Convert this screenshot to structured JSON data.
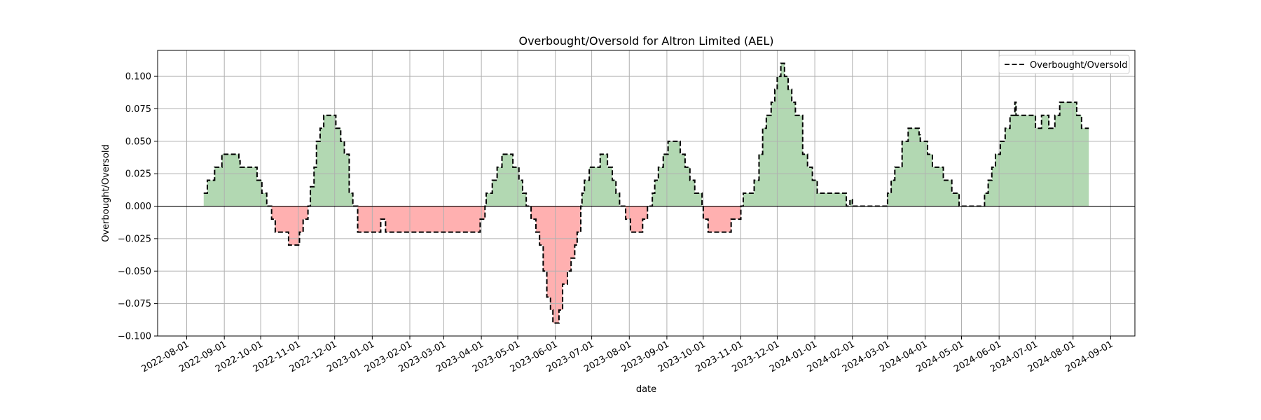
{
  "chart_data": {
    "type": "area",
    "title": "Overbought/Oversold for Altron Limited (AEL)",
    "xlabel": "date",
    "ylabel": "Overbought/Oversold",
    "xlim": [
      "2022-07-08",
      "2024-09-21"
    ],
    "ylim": [
      -0.1,
      0.12
    ],
    "x_ticks": [
      "2022-08-01",
      "2022-09-01",
      "2022-10-01",
      "2022-11-01",
      "2022-12-01",
      "2023-01-01",
      "2023-02-01",
      "2023-03-01",
      "2023-04-01",
      "2023-05-01",
      "2023-06-01",
      "2023-07-01",
      "2023-08-01",
      "2023-09-01",
      "2023-10-01",
      "2023-11-01",
      "2023-12-01",
      "2024-01-01",
      "2024-02-01",
      "2024-03-01",
      "2024-04-01",
      "2024-05-01",
      "2024-06-01",
      "2024-07-01",
      "2024-08-01",
      "2024-09-01"
    ],
    "y_ticks": [
      -0.1,
      -0.075,
      -0.05,
      -0.025,
      0.0,
      0.025,
      0.05,
      0.075,
      0.1
    ],
    "y_tick_labels": [
      "−0.100",
      "−0.075",
      "−0.050",
      "−0.025",
      "0.000",
      "0.025",
      "0.050",
      "0.075",
      "0.100"
    ],
    "grid": true,
    "legend": {
      "position": "top-right",
      "entries": [
        "Overbought/Oversold"
      ]
    },
    "fill_colors": {
      "positive": "#b2d8b2",
      "negative": "#ffb0b0"
    },
    "line_color": "#000000",
    "baseline": 0.0,
    "series": [
      {
        "name": "Overbought/Oversold",
        "style": "dashed-step",
        "points": [
          [
            "2022-08-15",
            0.01
          ],
          [
            "2022-08-18",
            0.02
          ],
          [
            "2022-08-24",
            0.03
          ],
          [
            "2022-08-30",
            0.04
          ],
          [
            "2022-09-10",
            0.04
          ],
          [
            "2022-09-13",
            0.035
          ],
          [
            "2022-09-14",
            0.03
          ],
          [
            "2022-09-25",
            0.03
          ],
          [
            "2022-09-28",
            0.02
          ],
          [
            "2022-10-02",
            0.01
          ],
          [
            "2022-10-06",
            0.0
          ],
          [
            "2022-10-10",
            -0.01
          ],
          [
            "2022-10-13",
            -0.02
          ],
          [
            "2022-10-20",
            -0.02
          ],
          [
            "2022-10-24",
            -0.03
          ],
          [
            "2022-11-02",
            -0.02
          ],
          [
            "2022-11-05",
            -0.01
          ],
          [
            "2022-11-09",
            0.0
          ],
          [
            "2022-11-11",
            0.015
          ],
          [
            "2022-11-14",
            0.03
          ],
          [
            "2022-11-16",
            0.05
          ],
          [
            "2022-11-19",
            0.06
          ],
          [
            "2022-11-22",
            0.07
          ],
          [
            "2022-12-02",
            0.06
          ],
          [
            "2022-12-06",
            0.05
          ],
          [
            "2022-12-09",
            0.04
          ],
          [
            "2022-12-13",
            0.01
          ],
          [
            "2022-12-16",
            0.0
          ],
          [
            "2022-12-20",
            -0.02
          ],
          [
            "2023-01-08",
            -0.01
          ],
          [
            "2023-01-12",
            -0.02
          ],
          [
            "2023-03-28",
            -0.02
          ],
          [
            "2023-03-31",
            -0.01
          ],
          [
            "2023-04-04",
            0.0
          ],
          [
            "2023-04-05",
            0.01
          ],
          [
            "2023-04-10",
            0.02
          ],
          [
            "2023-04-14",
            0.03
          ],
          [
            "2023-04-18",
            0.04
          ],
          [
            "2023-04-27",
            0.03
          ],
          [
            "2023-05-02",
            0.02
          ],
          [
            "2023-05-05",
            0.01
          ],
          [
            "2023-05-08",
            0.0
          ],
          [
            "2023-05-12",
            -0.01
          ],
          [
            "2023-05-16",
            -0.02
          ],
          [
            "2023-05-19",
            -0.03
          ],
          [
            "2023-05-22",
            -0.05
          ],
          [
            "2023-05-25",
            -0.07
          ],
          [
            "2023-05-28",
            -0.08
          ],
          [
            "2023-05-30",
            -0.09
          ],
          [
            "2023-06-04",
            -0.08
          ],
          [
            "2023-06-07",
            -0.06
          ],
          [
            "2023-06-11",
            -0.05
          ],
          [
            "2023-06-14",
            -0.04
          ],
          [
            "2023-06-17",
            -0.03
          ],
          [
            "2023-06-19",
            -0.02
          ],
          [
            "2023-06-22",
            0.0
          ],
          [
            "2023-06-23",
            0.01
          ],
          [
            "2023-06-25",
            0.02
          ],
          [
            "2023-06-29",
            0.03
          ],
          [
            "2023-07-08",
            0.04
          ],
          [
            "2023-07-14",
            0.03
          ],
          [
            "2023-07-18",
            0.02
          ],
          [
            "2023-07-21",
            0.01
          ],
          [
            "2023-07-24",
            0.0
          ],
          [
            "2023-07-29",
            -0.01
          ],
          [
            "2023-08-02",
            -0.02
          ],
          [
            "2023-08-12",
            -0.01
          ],
          [
            "2023-08-16",
            0.0
          ],
          [
            "2023-08-20",
            0.01
          ],
          [
            "2023-08-22",
            0.02
          ],
          [
            "2023-08-25",
            0.03
          ],
          [
            "2023-08-29",
            0.04
          ],
          [
            "2023-09-02",
            0.05
          ],
          [
            "2023-09-12",
            0.04
          ],
          [
            "2023-09-16",
            0.03
          ],
          [
            "2023-09-20",
            0.02
          ],
          [
            "2023-09-24",
            0.01
          ],
          [
            "2023-09-30",
            0.0
          ],
          [
            "2023-10-01",
            -0.01
          ],
          [
            "2023-10-05",
            -0.02
          ],
          [
            "2023-10-24",
            -0.01
          ],
          [
            "2023-11-01",
            0.0
          ],
          [
            "2023-11-03",
            0.01
          ],
          [
            "2023-11-12",
            0.02
          ],
          [
            "2023-11-16",
            0.04
          ],
          [
            "2023-11-19",
            0.06
          ],
          [
            "2023-11-22",
            0.07
          ],
          [
            "2023-11-26",
            0.08
          ],
          [
            "2023-11-29",
            0.09
          ],
          [
            "2023-12-01",
            0.1
          ],
          [
            "2023-12-04",
            0.11
          ],
          [
            "2023-12-07",
            0.1
          ],
          [
            "2023-12-10",
            0.09
          ],
          [
            "2023-12-13",
            0.08
          ],
          [
            "2023-12-16",
            0.07
          ],
          [
            "2023-12-22",
            0.04
          ],
          [
            "2023-12-26",
            0.03
          ],
          [
            "2023-12-30",
            0.02
          ],
          [
            "2024-01-03",
            0.01
          ],
          [
            "2024-01-27",
            0.0
          ],
          [
            "2024-01-30",
            0.005
          ],
          [
            "2024-02-01",
            0.0
          ],
          [
            "2024-03-01",
            0.01
          ],
          [
            "2024-03-04",
            0.02
          ],
          [
            "2024-03-07",
            0.03
          ],
          [
            "2024-03-13",
            0.05
          ],
          [
            "2024-03-18",
            0.06
          ],
          [
            "2024-03-27",
            0.055
          ],
          [
            "2024-03-28",
            0.05
          ],
          [
            "2024-04-03",
            0.04
          ],
          [
            "2024-04-07",
            0.03
          ],
          [
            "2024-04-16",
            0.02
          ],
          [
            "2024-04-23",
            0.01
          ],
          [
            "2024-04-29",
            0.0
          ],
          [
            "2024-05-20",
            0.01
          ],
          [
            "2024-05-23",
            0.02
          ],
          [
            "2024-05-26",
            0.03
          ],
          [
            "2024-05-29",
            0.04
          ],
          [
            "2024-06-02",
            0.05
          ],
          [
            "2024-06-06",
            0.06
          ],
          [
            "2024-06-10",
            0.07
          ],
          [
            "2024-06-14",
            0.08
          ],
          [
            "2024-06-15",
            0.07
          ],
          [
            "2024-07-01",
            0.06
          ],
          [
            "2024-07-06",
            0.07
          ],
          [
            "2024-07-12",
            0.06
          ],
          [
            "2024-07-17",
            0.07
          ],
          [
            "2024-07-21",
            0.08
          ],
          [
            "2024-08-04",
            0.07
          ],
          [
            "2024-08-08",
            0.06
          ],
          [
            "2024-08-14",
            0.06
          ]
        ]
      }
    ]
  }
}
